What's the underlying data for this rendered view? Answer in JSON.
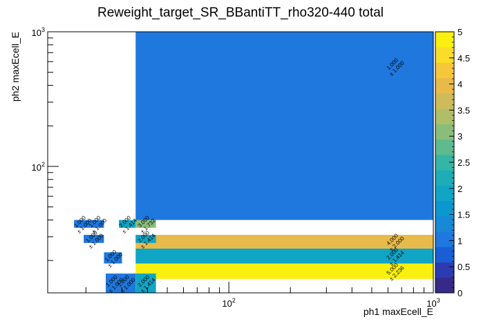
{
  "chart_data": {
    "type": "heatmap",
    "title": "Reweight_target_SR_BBantiTT_rho320-440 total",
    "xlabel": "ph1 maxEcell_E",
    "ylabel": "ph2 maxEcell_E",
    "xscale": "log",
    "yscale": "log",
    "xlim": [
      13,
      1000
    ],
    "ylim": [
      11.5,
      1000
    ],
    "x_ticks": [
      {
        "value": 100,
        "base": "10",
        "exp": "2"
      },
      {
        "value": 1000,
        "base": "10",
        "exp": "3"
      }
    ],
    "y_ticks": [
      {
        "value": 100,
        "base": "10",
        "exp": "2"
      },
      {
        "value": 1000,
        "base": "10",
        "exp": "3"
      }
    ],
    "zlim": [
      0,
      5
    ],
    "colorbar_ticks": [
      "0",
      "0.5",
      "1",
      "1.5",
      "2",
      "2.5",
      "3",
      "3.5",
      "4",
      "4.5",
      "5"
    ],
    "palette": [
      "#352a87",
      "#2c3bb1",
      "#1a5ed6",
      "#1e78dd",
      "#1789d6",
      "#0b97cf",
      "#10a4c5",
      "#1eadb6",
      "#35b5a5",
      "#5eba8f",
      "#8abd7a",
      "#afbf68",
      "#cfbb5a",
      "#e8ba4a",
      "#f6c73a",
      "#fbdc29",
      "#f9f00f"
    ],
    "cells": [
      {
        "x": [
          35,
          1000
        ],
        "y": [
          40,
          1000
        ],
        "value": 1,
        "text": "1.000",
        "err": "± 1.000"
      },
      {
        "x": [
          35,
          1000
        ],
        "y": [
          24.5,
          31
        ],
        "value": 4,
        "text": "4.000",
        "err": "± 2.000"
      },
      {
        "x": [
          35,
          1000
        ],
        "y": [
          19,
          24.5
        ],
        "value": 2,
        "text": "2.000",
        "err": "± 1.414"
      },
      {
        "x": [
          35,
          1000
        ],
        "y": [
          14.6,
          19
        ],
        "value": 5,
        "text": "5.000",
        "err": "± 2.236"
      },
      {
        "x": [
          17.5,
          21
        ],
        "y": [
          35,
          40
        ],
        "value": 1,
        "text": "1.000",
        "err": "± 1.000"
      },
      {
        "x": [
          21,
          24.5
        ],
        "y": [
          35,
          40
        ],
        "value": 1,
        "text": "1.000",
        "err": "± 1.000"
      },
      {
        "x": [
          19.5,
          24.5
        ],
        "y": [
          27,
          31
        ],
        "value": 1,
        "text": "1.000",
        "err": "± 1.000"
      },
      {
        "x": [
          24.5,
          30
        ],
        "y": [
          19,
          23
        ],
        "value": 1,
        "text": "1.000",
        "err": "± 1.000"
      },
      {
        "x": [
          29,
          35
        ],
        "y": [
          35,
          40
        ],
        "value": 2,
        "text": "2.000",
        "err": "± 1.414"
      },
      {
        "x": [
          35,
          44
        ],
        "y": [
          35,
          40
        ],
        "value": 3,
        "text": "3.000",
        "err": "± 1.732"
      },
      {
        "x": [
          35,
          44
        ],
        "y": [
          27,
          31
        ],
        "value": 2,
        "text": "2.000",
        "err": "± 1.414"
      },
      {
        "x": [
          25,
          30
        ],
        "y": [
          11.5,
          16
        ],
        "value": 1,
        "text": "1.000",
        "err": "± 1.000"
      },
      {
        "x": [
          28,
          35
        ],
        "y": [
          11.5,
          16
        ],
        "value": 1,
        "text": "1.000",
        "err": "± 1.000"
      },
      {
        "x": [
          35,
          44
        ],
        "y": [
          11.5,
          16
        ],
        "value": 2,
        "text": "2.000",
        "err": "± 1.414"
      }
    ],
    "grid": false,
    "legend": "colorbar-right"
  }
}
